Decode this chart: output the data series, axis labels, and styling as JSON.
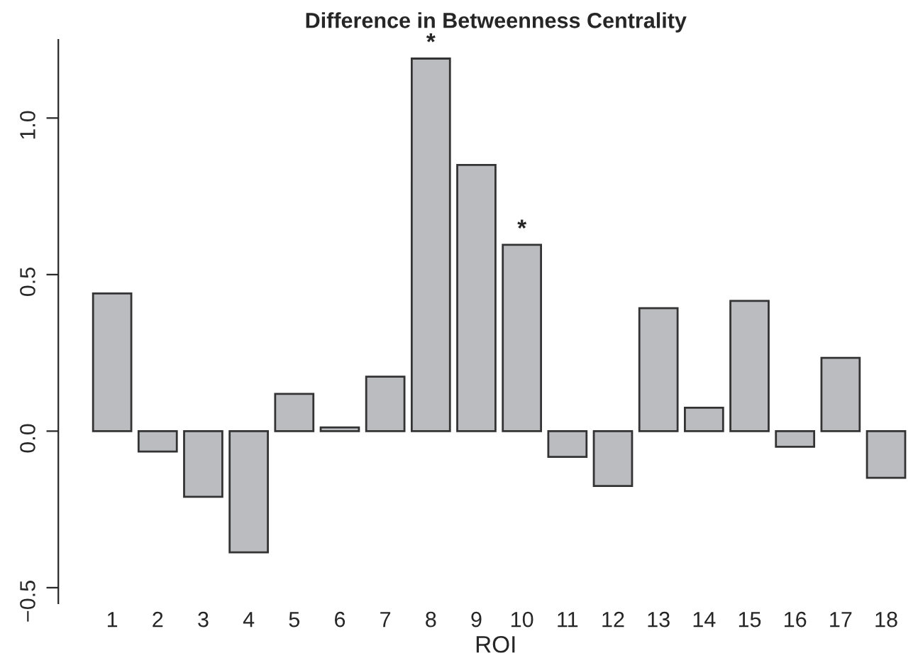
{
  "chart_data": {
    "type": "bar",
    "title": "Difference in Betweenness Centrality",
    "xlabel": "ROI",
    "categories": [
      "1",
      "2",
      "3",
      "4",
      "5",
      "6",
      "7",
      "8",
      "9",
      "10",
      "11",
      "12",
      "13",
      "14",
      "15",
      "16",
      "17",
      "18"
    ],
    "values": [
      0.44,
      -0.065,
      -0.21,
      -0.387,
      0.119,
      0.012,
      0.174,
      1.19,
      0.85,
      0.595,
      -0.082,
      -0.175,
      0.393,
      0.075,
      0.416,
      -0.05,
      0.234,
      -0.149
    ],
    "color": "#bbbcc0",
    "ylim": [
      -0.55,
      1.25
    ],
    "yticks": [
      {
        "value": -0.5,
        "label": "−0.5"
      },
      {
        "value": 0.0,
        "label": "0.0"
      },
      {
        "value": 0.5,
        "label": "0.5"
      },
      {
        "value": 1.0,
        "label": "1.0"
      }
    ],
    "grid": false,
    "annotations": [
      {
        "text": "*",
        "x": "8",
        "y": 1.19
      },
      {
        "text": "*",
        "x": "10",
        "y": 0.595
      }
    ]
  }
}
